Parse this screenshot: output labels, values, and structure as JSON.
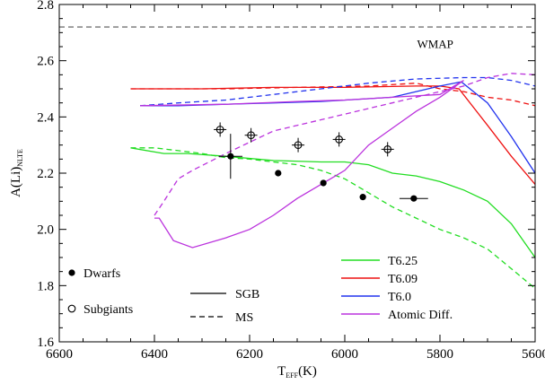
{
  "chart_data": {
    "type": "line",
    "xlabel_main": "T",
    "xlabel_sub": "EFF",
    "xlabel_unit": "(K)",
    "ylabel_main": "A(Li)",
    "ylabel_sub": "NLTE",
    "xlim": [
      6600,
      5600
    ],
    "ylim": [
      1.6,
      2.8
    ],
    "x_ticks": [
      6600,
      6400,
      6200,
      6000,
      5800,
      5600
    ],
    "y_ticks": [
      1.6,
      1.8,
      2.0,
      2.2,
      2.4,
      2.6,
      2.8
    ],
    "reference_line": {
      "label": "WMAP",
      "y": 2.72,
      "style": "dashed",
      "color": "#555555"
    },
    "legend_symbols": [
      {
        "label": "Dwarfs",
        "marker": "filled-circle"
      },
      {
        "label": "Subgiants",
        "marker": "open-circle-cross"
      }
    ],
    "legend_styles": [
      {
        "label": "SGB",
        "style": "solid"
      },
      {
        "label": "MS",
        "style": "dashed"
      }
    ],
    "legend_models": [
      {
        "label": "T6.25",
        "color": "#22dd22"
      },
      {
        "label": "T6.09",
        "color": "#ee1111"
      },
      {
        "label": "T6.0",
        "color": "#2233ee"
      },
      {
        "label": "Atomic Diff.",
        "color": "#bb33dd"
      }
    ],
    "dwarfs": [
      {
        "x": 6240,
        "y": 2.26,
        "xerr": 25,
        "yerr": 0.08
      },
      {
        "x": 6140,
        "y": 2.2
      },
      {
        "x": 6045,
        "y": 2.165
      },
      {
        "x": 5962,
        "y": 2.115
      },
      {
        "x": 5855,
        "y": 2.11,
        "xerr": 30
      }
    ],
    "subgiants": [
      {
        "x": 6262,
        "y": 2.355
      },
      {
        "x": 6197,
        "y": 2.335
      },
      {
        "x": 6098,
        "y": 2.3
      },
      {
        "x": 6012,
        "y": 2.32
      },
      {
        "x": 5910,
        "y": 2.285
      }
    ],
    "series": [
      {
        "model": "T6.25",
        "track": "SGB",
        "color": "#22dd22",
        "dashed": false,
        "points": [
          [
            6450,
            2.29
          ],
          [
            6380,
            2.27
          ],
          [
            6330,
            2.27
          ],
          [
            6250,
            2.26
          ],
          [
            6150,
            2.245
          ],
          [
            6050,
            2.24
          ],
          [
            6000,
            2.24
          ],
          [
            5950,
            2.23
          ],
          [
            5900,
            2.2
          ],
          [
            5850,
            2.19
          ],
          [
            5800,
            2.17
          ],
          [
            5750,
            2.14
          ],
          [
            5700,
            2.1
          ],
          [
            5650,
            2.02
          ],
          [
            5600,
            1.9
          ]
        ]
      },
      {
        "model": "T6.25",
        "track": "MS",
        "color": "#22dd22",
        "dashed": true,
        "points": [
          [
            6450,
            2.29
          ],
          [
            6400,
            2.29
          ],
          [
            6350,
            2.28
          ],
          [
            6300,
            2.27
          ],
          [
            6250,
            2.255
          ],
          [
            6200,
            2.25
          ],
          [
            6150,
            2.24
          ],
          [
            6100,
            2.23
          ],
          [
            6050,
            2.21
          ],
          [
            6000,
            2.18
          ],
          [
            5950,
            2.13
          ],
          [
            5900,
            2.08
          ],
          [
            5850,
            2.04
          ],
          [
            5800,
            2.0
          ],
          [
            5750,
            1.97
          ],
          [
            5700,
            1.93
          ],
          [
            5650,
            1.86
          ],
          [
            5600,
            1.79
          ]
        ]
      },
      {
        "model": "T6.09",
        "track": "SGB",
        "color": "#ee1111",
        "dashed": false,
        "points": [
          [
            6450,
            2.5
          ],
          [
            6300,
            2.5
          ],
          [
            6150,
            2.505
          ],
          [
            6000,
            2.505
          ],
          [
            5850,
            2.51
          ],
          [
            5800,
            2.51
          ],
          [
            5760,
            2.5
          ],
          [
            5700,
            2.37
          ],
          [
            5650,
            2.26
          ],
          [
            5600,
            2.16
          ]
        ]
      },
      {
        "model": "T6.09",
        "track": "MS",
        "color": "#ee1111",
        "dashed": true,
        "points": [
          [
            6450,
            2.5
          ],
          [
            6250,
            2.5
          ],
          [
            6100,
            2.505
          ],
          [
            5950,
            2.51
          ],
          [
            5850,
            2.52
          ],
          [
            5800,
            2.5
          ],
          [
            5750,
            2.49
          ],
          [
            5700,
            2.47
          ],
          [
            5650,
            2.46
          ],
          [
            5600,
            2.44
          ]
        ]
      },
      {
        "model": "T6.0",
        "track": "SGB",
        "color": "#2233ee",
        "dashed": false,
        "points": [
          [
            6430,
            2.44
          ],
          [
            6350,
            2.44
          ],
          [
            6250,
            2.445
          ],
          [
            6150,
            2.45
          ],
          [
            6050,
            2.455
          ],
          [
            5950,
            2.465
          ],
          [
            5900,
            2.47
          ],
          [
            5850,
            2.49
          ],
          [
            5800,
            2.51
          ],
          [
            5755,
            2.525
          ],
          [
            5700,
            2.45
          ],
          [
            5650,
            2.33
          ],
          [
            5600,
            2.2
          ]
        ]
      },
      {
        "model": "T6.0",
        "track": "MS",
        "color": "#2233ee",
        "dashed": true,
        "points": [
          [
            6430,
            2.44
          ],
          [
            6350,
            2.45
          ],
          [
            6250,
            2.46
          ],
          [
            6150,
            2.48
          ],
          [
            6050,
            2.5
          ],
          [
            5950,
            2.52
          ],
          [
            5850,
            2.535
          ],
          [
            5750,
            2.54
          ],
          [
            5700,
            2.54
          ],
          [
            5650,
            2.53
          ],
          [
            5600,
            2.51
          ]
        ]
      },
      {
        "model": "Atomic Diff.",
        "track": "SGB",
        "color": "#bb33dd",
        "dashed": false,
        "points": [
          [
            6430,
            2.44
          ],
          [
            6250,
            2.445
          ],
          [
            6100,
            2.455
          ],
          [
            6000,
            2.46
          ],
          [
            5900,
            2.47
          ],
          [
            5800,
            2.48
          ],
          [
            5750,
            2.53
          ],
          [
            5800,
            2.47
          ],
          [
            5850,
            2.42
          ],
          [
            5900,
            2.36
          ],
          [
            5950,
            2.3
          ],
          [
            6000,
            2.21
          ],
          [
            6100,
            2.11
          ],
          [
            6150,
            2.05
          ],
          [
            6200,
            2.0
          ],
          [
            6250,
            1.97
          ],
          [
            6320,
            1.935
          ],
          [
            6360,
            1.96
          ],
          [
            6390,
            2.04
          ],
          [
            6400,
            2.04
          ]
        ]
      },
      {
        "model": "Atomic Diff.",
        "track": "MS",
        "color": "#bb33dd",
        "dashed": true,
        "points": [
          [
            6400,
            2.05
          ],
          [
            6380,
            2.1
          ],
          [
            6350,
            2.18
          ],
          [
            6320,
            2.21
          ],
          [
            6250,
            2.27
          ],
          [
            6150,
            2.35
          ],
          [
            6050,
            2.39
          ],
          [
            5950,
            2.43
          ],
          [
            5850,
            2.47
          ],
          [
            5800,
            2.49
          ],
          [
            5750,
            2.51
          ],
          [
            5700,
            2.54
          ],
          [
            5650,
            2.555
          ],
          [
            5600,
            2.55
          ]
        ]
      }
    ]
  }
}
